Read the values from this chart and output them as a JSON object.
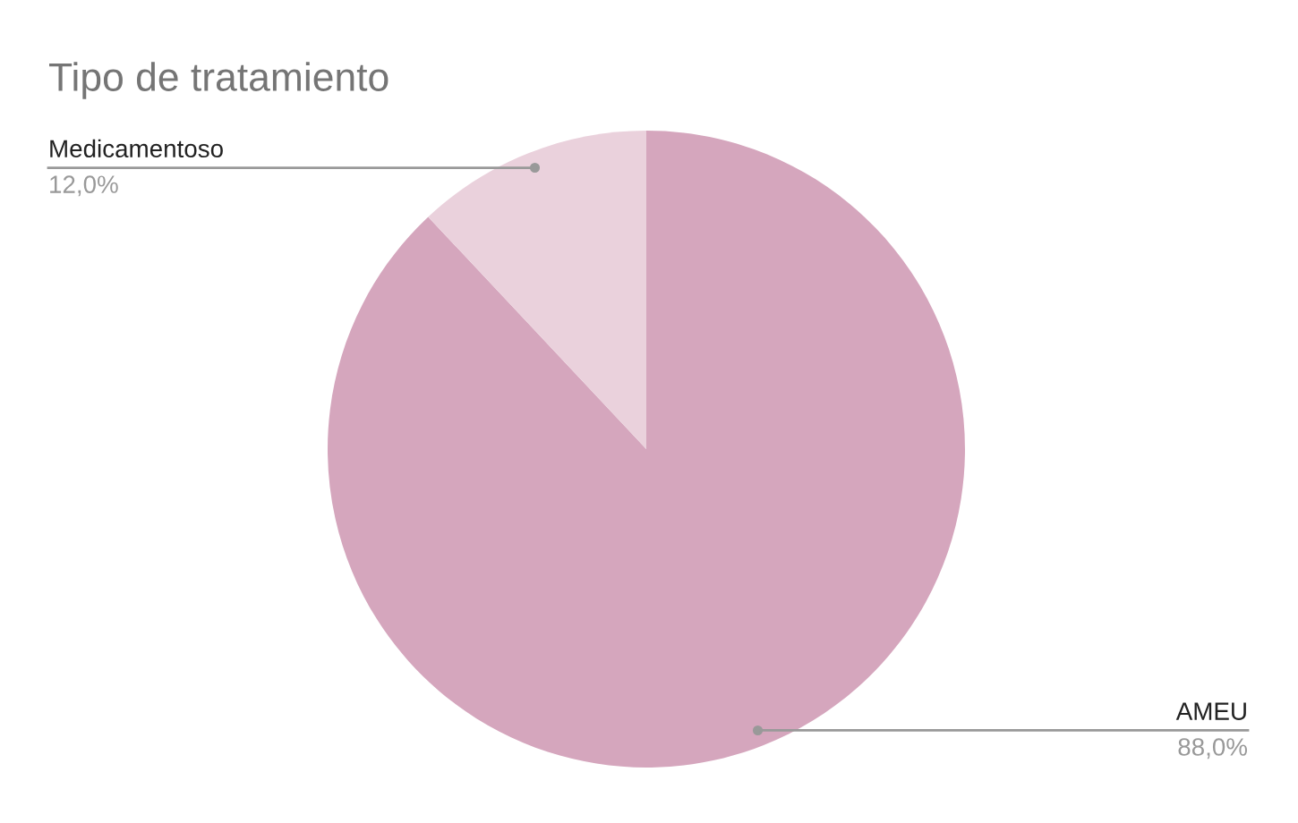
{
  "chart_data": {
    "type": "pie",
    "title": "Tipo de tratamiento",
    "categories": [
      "AMEU",
      "Medicamentoso"
    ],
    "values": [
      88.0,
      12.0
    ],
    "value_labels": [
      "88,0%",
      "12,0%"
    ],
    "colors": [
      "#d5a6bd",
      "#ead1dc"
    ]
  }
}
